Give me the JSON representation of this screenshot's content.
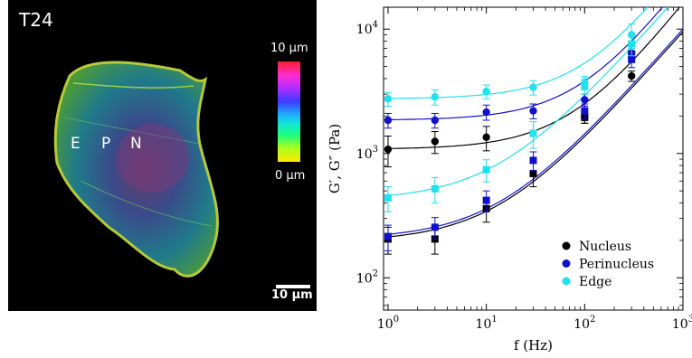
{
  "micrograph": {
    "panel_label": "T24",
    "regions": [
      "E",
      "P",
      "N"
    ],
    "colorbar": {
      "top_label": "10 μm",
      "bottom_label": "0 μm"
    },
    "scale_bar": "10 μm"
  },
  "chart_data": {
    "type": "scatter",
    "xlabel": "f (Hz)",
    "ylabel": "G′, G″ (Pa)",
    "xscale": "log",
    "yscale": "log",
    "xlim": [
      0.9,
      1000
    ],
    "ylim": [
      55,
      15000
    ],
    "x_ticks": [
      1,
      10,
      100,
      1000
    ],
    "x_tick_labels": [
      "10^0",
      "10^1",
      "10^2",
      "10^3"
    ],
    "y_ticks": [
      100,
      1000,
      10000
    ],
    "y_tick_labels": [
      "10^2",
      "10^3",
      "10^4"
    ],
    "legend_position": "bottom-right",
    "x": [
      1,
      3,
      10,
      30,
      100,
      300
    ],
    "series": [
      {
        "name": "Nucleus",
        "color": "#000000",
        "storage": [
          1080,
          1250,
          1350,
          null,
          1950,
          4200
        ],
        "loss": [
          205,
          205,
          360,
          690,
          1950,
          6200
        ],
        "storage_err": [
          300,
          250,
          300,
          null,
          200,
          400
        ],
        "loss_err": [
          50,
          50,
          80,
          150,
          200,
          500
        ]
      },
      {
        "name": "Perinucleus",
        "color": "#1111cc",
        "storage": [
          1850,
          1850,
          2150,
          2200,
          2700,
          6400
        ],
        "loss": [
          215,
          255,
          420,
          880,
          2200,
          5700
        ],
        "storage_err": [
          250,
          250,
          300,
          300,
          300,
          800
        ],
        "loss_err": [
          50,
          50,
          80,
          150,
          300,
          800
        ]
      },
      {
        "name": "Edge",
        "color": "#22e0ee",
        "storage": [
          2750,
          2850,
          3150,
          3400,
          3700,
          9000
        ],
        "loss": [
          440,
          520,
          740,
          1450,
          3500,
          7600
        ],
        "storage_err": [
          350,
          400,
          400,
          450,
          450,
          2000
        ],
        "loss_err": [
          100,
          120,
          150,
          350,
          500,
          1500
        ]
      }
    ]
  }
}
